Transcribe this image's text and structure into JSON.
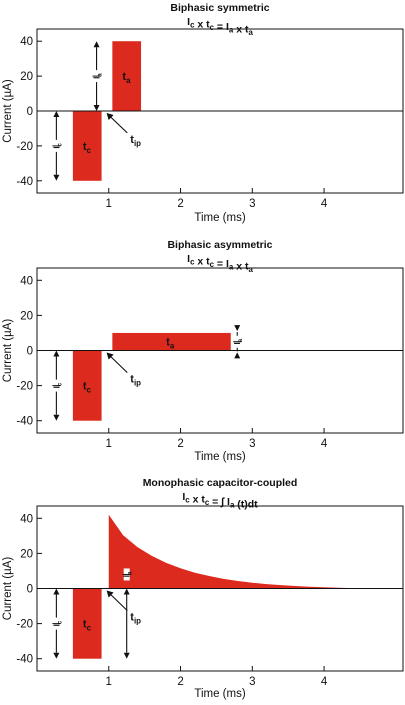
{
  "chart_data": [
    {
      "type": "area",
      "title": "Biphasic symmetric",
      "subtitle": "Ic x tc = Ia x ta",
      "xlabel": "Time (ms)",
      "ylabel": "Current (µA)",
      "xlim": [
        0,
        5.1
      ],
      "ylim": [
        -47,
        47
      ],
      "xticks": [
        1,
        2,
        3,
        4
      ],
      "yticks": [
        40,
        20,
        0,
        -20,
        -40
      ],
      "grid": false,
      "series": [
        {
          "kind": "rect",
          "x": [
            0.5,
            0.9
          ],
          "y": [
            -40,
            0
          ],
          "color": "#dd2a1e"
        },
        {
          "kind": "rect",
          "x": [
            1.05,
            1.45
          ],
          "y": [
            0,
            40
          ],
          "color": "#dd2a1e"
        }
      ],
      "annotations": [
        {
          "text": "t",
          "sub": "c",
          "x": 0.64,
          "y": -20
        },
        {
          "text": "t",
          "sub": "a",
          "x": 1.19,
          "y": 20
        },
        {
          "text": "t",
          "sub": "ip",
          "x": 1.3,
          "y": -16
        },
        {
          "text": "I",
          "sub": "c",
          "x": 0.27,
          "y": -20
        },
        {
          "text": "I",
          "sub": "a",
          "x": 0.83,
          "y": 20
        }
      ]
    },
    {
      "type": "area",
      "title": "Biphasic asymmetric",
      "subtitle": "Ic x tc = Ia x ta",
      "xlabel": "Time (ms)",
      "ylabel": "Current (µA)",
      "xlim": [
        0,
        5.1
      ],
      "ylim": [
        -47,
        47
      ],
      "xticks": [
        1,
        2,
        3,
        4
      ],
      "yticks": [
        40,
        20,
        0,
        -20,
        -40
      ],
      "grid": false,
      "series": [
        {
          "kind": "rect",
          "x": [
            0.5,
            0.9
          ],
          "y": [
            -40,
            0
          ],
          "color": "#dd2a1e"
        },
        {
          "kind": "rect",
          "x": [
            1.05,
            2.7
          ],
          "y": [
            0,
            10
          ],
          "color": "#dd2a1e"
        }
      ],
      "annotations": [
        {
          "text": "t",
          "sub": "c",
          "x": 0.64,
          "y": -20
        },
        {
          "text": "t",
          "sub": "a",
          "x": 1.8,
          "y": 5
        },
        {
          "text": "t",
          "sub": "ip",
          "x": 1.3,
          "y": -16
        },
        {
          "text": "I",
          "sub": "c",
          "x": 0.27,
          "y": -20
        },
        {
          "text": "I",
          "sub": "a",
          "x": 2.79,
          "y": 5
        }
      ]
    },
    {
      "type": "area",
      "title": "Monophasic capacitor-coupled",
      "subtitle": "Ic x tc = ∫ Ia (t)dt",
      "xlabel": "Time (ms)",
      "ylabel": "Current (µA)",
      "xlim": [
        0,
        5.1
      ],
      "ylim": [
        -47,
        47
      ],
      "xticks": [
        1,
        2,
        3,
        4
      ],
      "yticks": [
        40,
        20,
        0,
        -20,
        -40
      ],
      "grid": false,
      "series": [
        {
          "kind": "rect",
          "x": [
            0.5,
            0.9
          ],
          "y": [
            -40,
            0
          ],
          "color": "#dd2a1e"
        },
        {
          "kind": "curve",
          "color": "#dd2a1e",
          "x": [
            1.0,
            1.2,
            1.4,
            1.6,
            1.8,
            2.0,
            2.2,
            2.4,
            2.6,
            2.8,
            3.0,
            3.2,
            3.4,
            3.6,
            3.8,
            4.0,
            4.2,
            4.4,
            4.6
          ],
          "y": [
            42,
            30.3,
            23.6,
            18.6,
            14.6,
            11.5,
            9.0,
            7.1,
            5.5,
            4.3,
            3.3,
            2.5,
            1.9,
            1.4,
            1.0,
            0.7,
            0.4,
            0.2,
            0
          ]
        }
      ],
      "annotations": [
        {
          "text": "t",
          "sub": "c",
          "x": 0.64,
          "y": -20
        },
        {
          "text": "I",
          "sub": "a",
          "text2": "(t)",
          "x": 1.25,
          "y": 8
        },
        {
          "text": "t",
          "sub": "ip",
          "x": 1.3,
          "y": -16
        },
        {
          "text": "I",
          "sub": "c",
          "x": 0.27,
          "y": -20
        }
      ]
    }
  ]
}
